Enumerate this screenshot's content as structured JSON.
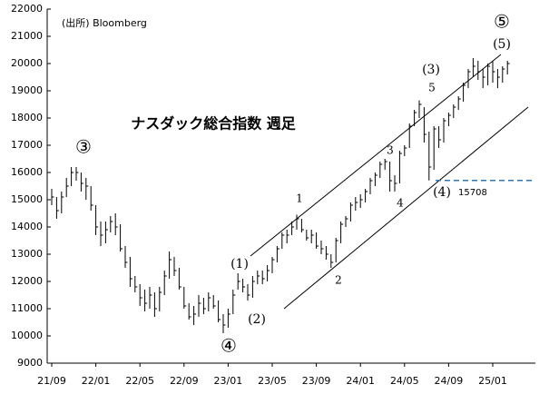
{
  "chart_data": {
    "type": "ohlc",
    "title": "ナスダック総合指数 週足",
    "source": "(出所) Bloomberg",
    "categories": [
      "21/09",
      null,
      null,
      null,
      null,
      null,
      null,
      null,
      null,
      "22/01",
      null,
      null,
      null,
      null,
      null,
      null,
      null,
      null,
      "22/05",
      null,
      null,
      null,
      null,
      null,
      null,
      null,
      null,
      "22/09",
      null,
      null,
      null,
      null,
      null,
      null,
      null,
      null,
      "23/01",
      null,
      null,
      null,
      null,
      null,
      null,
      null,
      null,
      "23/05",
      null,
      null,
      null,
      null,
      null,
      null,
      null,
      null,
      "23/09",
      null,
      null,
      null,
      null,
      null,
      null,
      null,
      null,
      "24/01",
      null,
      null,
      null,
      null,
      null,
      null,
      null,
      null,
      "24/05",
      null,
      null,
      null,
      null,
      null,
      null,
      null,
      null,
      "24/09",
      null,
      null,
      null,
      null,
      null,
      null,
      null,
      null,
      "25/01",
      null,
      null,
      null
    ],
    "high": [
      15400,
      15100,
      15300,
      15800,
      16200,
      16200,
      16000,
      15800,
      15500,
      14800,
      14200,
      14200,
      14400,
      14500,
      14100,
      13300,
      12900,
      12200,
      11900,
      11700,
      11800,
      11600,
      11800,
      12400,
      13100,
      12900,
      12500,
      11800,
      11200,
      11100,
      11500,
      11400,
      11600,
      11500,
      11300,
      10800,
      11000,
      11700,
      12300,
      12100,
      11900,
      12200,
      12400,
      12400,
      12600,
      12900,
      13300,
      13800,
      13900,
      14200,
      14450,
      14300,
      13900,
      13900,
      13800,
      13500,
      13300,
      13000,
      13600,
      14200,
      14400,
      14900,
      15100,
      15200,
      15400,
      15800,
      16000,
      16400,
      16500,
      16400,
      15900,
      16800,
      17000,
      17800,
      18300,
      18650,
      18400,
      17500,
      17700,
      17700,
      18000,
      18200,
      18500,
      18800,
      19300,
      19800,
      20200,
      20100,
      19800,
      20000,
      20100,
      19800,
      19900,
      20100
    ],
    "low": [
      14800,
      14300,
      14500,
      15100,
      15500,
      15700,
      15300,
      15000,
      14600,
      13700,
      13300,
      13400,
      13800,
      13700,
      13100,
      12500,
      11800,
      11600,
      11100,
      10900,
      11000,
      10700,
      10900,
      11500,
      12100,
      12200,
      11700,
      11000,
      10600,
      10400,
      10700,
      10800,
      10900,
      11000,
      10500,
      10100,
      10300,
      10800,
      11700,
      11600,
      11300,
      11400,
      11900,
      11900,
      12000,
      12300,
      12700,
      13200,
      13400,
      13700,
      13900,
      13800,
      13500,
      13400,
      13200,
      13000,
      12800,
      12500,
      12700,
      13400,
      14000,
      14200,
      14600,
      14700,
      14900,
      15200,
      15500,
      15800,
      16100,
      15300,
      15300,
      15600,
      16600,
      16900,
      17700,
      18000,
      17100,
      15708,
      16100,
      16900,
      17100,
      17700,
      18000,
      18300,
      18600,
      19100,
      19500,
      19400,
      19100,
      19200,
      19300,
      19100,
      19300,
      19600
    ],
    "close": [
      15100,
      14600,
      15100,
      15500,
      16000,
      16000,
      15600,
      15500,
      14800,
      14000,
      13700,
      13900,
      14200,
      14000,
      13200,
      12700,
      12100,
      11800,
      11400,
      11200,
      11500,
      11000,
      11600,
      12200,
      12800,
      12400,
      11800,
      11100,
      10700,
      10800,
      11200,
      11000,
      11400,
      11100,
      10600,
      10400,
      10800,
      11500,
      12000,
      11800,
      11500,
      12000,
      12200,
      12100,
      12400,
      12800,
      13200,
      13700,
      13700,
      14000,
      14300,
      13900,
      13600,
      13700,
      13300,
      13200,
      13000,
      12700,
      13500,
      14100,
      14300,
      14800,
      14900,
      15000,
      15300,
      15700,
      15900,
      16300,
      16400,
      15700,
      15600,
      16700,
      16900,
      17700,
      18200,
      18500,
      17400,
      16200,
      17600,
      17200,
      17900,
      18100,
      18400,
      18700,
      19200,
      19700,
      19900,
      19700,
      19500,
      19900,
      19700,
      19500,
      19800,
      20000
    ],
    "color": "#000000",
    "ylim": [
      9000,
      22000
    ],
    "yticks": [
      9000,
      10000,
      11000,
      12000,
      13000,
      14000,
      15000,
      16000,
      17000,
      18000,
      19000,
      20000,
      21000,
      22000
    ],
    "reference_line": {
      "value": 15708,
      "label": "15708",
      "color": "#2e75b6"
    },
    "annotations": [
      "③",
      "④",
      "⑤",
      "(1)",
      "(2)",
      "(3)",
      "(4)",
      "(5)",
      "1",
      "2",
      "3",
      "4",
      "5"
    ]
  }
}
